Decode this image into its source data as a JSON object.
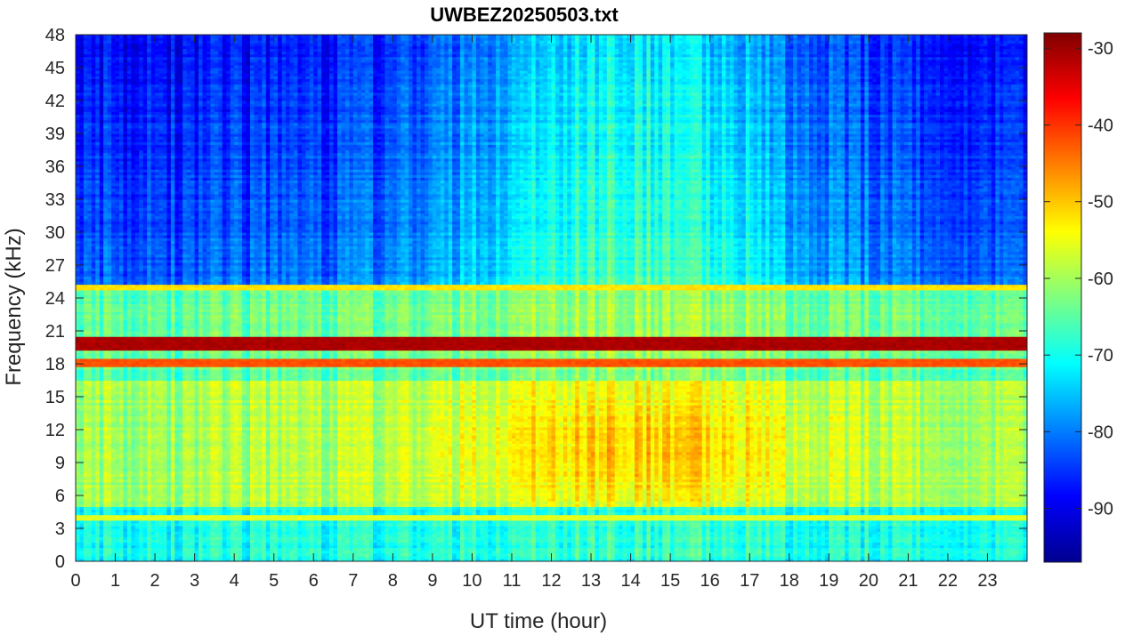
{
  "chart_data": {
    "type": "heatmap",
    "title": "UWBEZ20250503.txt",
    "xlabel": "UT time (hour)",
    "ylabel": "Frequency (kHz)",
    "xlim": [
      0,
      24
    ],
    "ylim": [
      0,
      48
    ],
    "x_ticks": [
      0,
      1,
      2,
      3,
      4,
      5,
      6,
      7,
      8,
      9,
      10,
      11,
      12,
      13,
      14,
      15,
      16,
      17,
      18,
      19,
      20,
      21,
      22,
      23
    ],
    "y_ticks": [
      0,
      3,
      6,
      9,
      12,
      15,
      18,
      21,
      24,
      27,
      30,
      33,
      36,
      39,
      42,
      45,
      48
    ],
    "colorbar": {
      "colormap": "jet",
      "range": [
        -97,
        -28
      ],
      "ticks": [
        -90,
        -80,
        -70,
        -60,
        -50,
        -40,
        -30
      ]
    },
    "features": {
      "strong_band_khz": 19.8,
      "secondary_band_khz": 18.2,
      "upper_band_khz": 25.0,
      "low_band_khz": 4.0,
      "daytime_enhancement": {
        "hours": [
          8,
          20
        ],
        "khz": [
          5,
          16
        ],
        "peak_db": -48
      },
      "background_high_freq_db": {
        "night": -88,
        "day": -72
      }
    },
    "colors": {
      "axis": "#262626",
      "background": "#ffffff"
    }
  }
}
